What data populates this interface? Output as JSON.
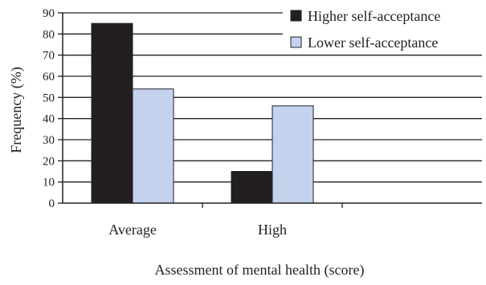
{
  "chart_data": {
    "type": "bar",
    "title": "",
    "xlabel": "Assessment of mental health (score)",
    "ylabel": "Frequency (%)",
    "ylim": [
      0,
      90
    ],
    "ytick_step": 10,
    "categories": [
      "Average",
      "High"
    ],
    "empty_slots_after": 1,
    "series": [
      {
        "name": "Higher self-acceptance",
        "values": [
          85,
          15
        ],
        "color": "#231f20"
      },
      {
        "name": "Lower self-acceptance",
        "values": [
          54,
          46
        ],
        "color": "#c4d2ee"
      }
    ],
    "grid": true,
    "legend_position": "top-right"
  }
}
